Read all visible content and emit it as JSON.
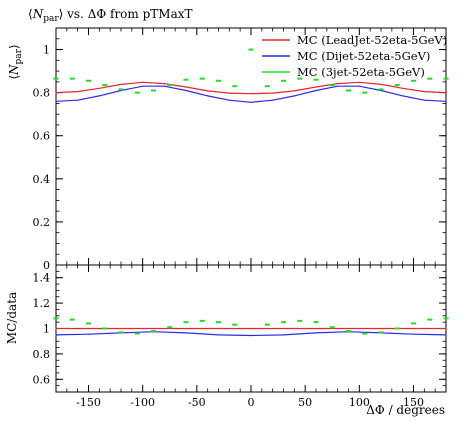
{
  "chart_data": [
    {
      "panel": "main",
      "type": "scatter",
      "title": "⟨N_par⟩ vs. ΔΦ from pTMaxT",
      "title_parts": {
        "prefix": "⟨",
        "var": "N",
        "sub": "par",
        "suffix": "⟩ vs. ΔΦ from pTMaxT"
      },
      "ylabel": "⟨N_par⟩",
      "ylabel_parts": {
        "prefix": "⟨",
        "var": "N",
        "sub": "par",
        "suffix": "⟩"
      },
      "xlim": [
        -180,
        180
      ],
      "ylim": [
        0,
        1.1
      ],
      "y_ticks": [
        "0",
        "0.2",
        "0.4",
        "0.6",
        "0.8",
        "1"
      ],
      "legend_position": "top-right",
      "legend": [
        {
          "name": "MC (LeadJet-52eta-5GeV)",
          "color": "#e8262a"
        },
        {
          "name": "MC (Dijet-52eta-5GeV)",
          "color": "#2a2ae8"
        },
        {
          "name": "MC (3jet-52eta-5GeV)",
          "color": "#22dd22"
        }
      ],
      "series": [
        {
          "name": "MC (LeadJet-52eta-5GeV)",
          "color": "#e8262a",
          "style": "line",
          "x": [
            -180,
            -160,
            -140,
            -120,
            -100,
            -80,
            -60,
            -40,
            -20,
            0,
            20,
            40,
            60,
            80,
            100,
            120,
            140,
            160,
            180
          ],
          "y": [
            0.8,
            0.805,
            0.82,
            0.838,
            0.848,
            0.842,
            0.826,
            0.808,
            0.798,
            0.795,
            0.798,
            0.808,
            0.826,
            0.842,
            0.848,
            0.838,
            0.82,
            0.805,
            0.8
          ]
        },
        {
          "name": "MC (Dijet-52eta-5GeV)",
          "color": "#2a2ae8",
          "style": "line",
          "x": [
            -180,
            -160,
            -140,
            -120,
            -100,
            -80,
            -60,
            -40,
            -20,
            0,
            20,
            40,
            60,
            80,
            100,
            120,
            140,
            160,
            180
          ],
          "y": [
            0.76,
            0.765,
            0.785,
            0.81,
            0.83,
            0.83,
            0.81,
            0.785,
            0.765,
            0.755,
            0.765,
            0.785,
            0.81,
            0.83,
            0.83,
            0.81,
            0.785,
            0.765,
            0.76
          ]
        },
        {
          "name": "MC (3jet-52eta-5GeV)",
          "color": "#22dd22",
          "style": "markers",
          "x": [
            -180,
            -165,
            -150,
            -135,
            -120,
            -105,
            -90,
            -75,
            -60,
            -45,
            -30,
            -15,
            0,
            15,
            30,
            45,
            60,
            75,
            90,
            105,
            120,
            135,
            150,
            165,
            180
          ],
          "y": [
            0.865,
            0.865,
            0.855,
            0.835,
            0.815,
            0.8,
            0.81,
            0.835,
            0.86,
            0.865,
            0.855,
            0.83,
            1.0,
            0.83,
            0.855,
            0.865,
            0.86,
            0.835,
            0.81,
            0.8,
            0.815,
            0.835,
            0.855,
            0.865,
            0.865
          ]
        }
      ]
    },
    {
      "panel": "ratio",
      "type": "scatter",
      "ylabel": "MC/data",
      "xlabel": "ΔΦ / degrees",
      "xlim": [
        -180,
        180
      ],
      "ylim": [
        0.5,
        1.5
      ],
      "x_ticks": [
        "-150",
        "-100",
        "-50",
        "0",
        "50",
        "100",
        "150"
      ],
      "y_ticks": [
        "0.6",
        "0.8",
        "1",
        "1.2",
        "1.4"
      ],
      "reference_line": 1.0,
      "series": [
        {
          "name": "MC (LeadJet-52eta-5GeV)",
          "color": "#e8262a",
          "style": "line",
          "x": [
            -180,
            -150,
            -120,
            -90,
            -60,
            -30,
            0,
            30,
            60,
            90,
            120,
            150,
            180
          ],
          "y": [
            1.0,
            1.0,
            1.0,
            1.0,
            1.0,
            1.0,
            1.0,
            1.0,
            1.0,
            1.0,
            1.0,
            1.0,
            1.0
          ]
        },
        {
          "name": "MC (Dijet-52eta-5GeV)",
          "color": "#2a2ae8",
          "style": "line",
          "x": [
            -180,
            -150,
            -120,
            -90,
            -60,
            -30,
            0,
            30,
            60,
            90,
            120,
            150,
            180
          ],
          "y": [
            0.95,
            0.955,
            0.965,
            0.975,
            0.965,
            0.95,
            0.945,
            0.95,
            0.965,
            0.975,
            0.965,
            0.955,
            0.95
          ]
        },
        {
          "name": "MC (3jet-52eta-5GeV)",
          "color": "#22dd22",
          "style": "markers",
          "x": [
            -180,
            -165,
            -150,
            -135,
            -120,
            -105,
            -90,
            -75,
            -60,
            -45,
            -30,
            -15,
            15,
            30,
            45,
            60,
            75,
            90,
            105,
            120,
            135,
            150,
            165,
            180
          ],
          "y": [
            1.08,
            1.07,
            1.04,
            1.0,
            0.97,
            0.96,
            0.98,
            1.01,
            1.05,
            1.06,
            1.05,
            1.03,
            1.03,
            1.05,
            1.06,
            1.05,
            1.01,
            0.98,
            0.96,
            0.97,
            1.0,
            1.04,
            1.07,
            1.08
          ]
        }
      ]
    }
  ]
}
